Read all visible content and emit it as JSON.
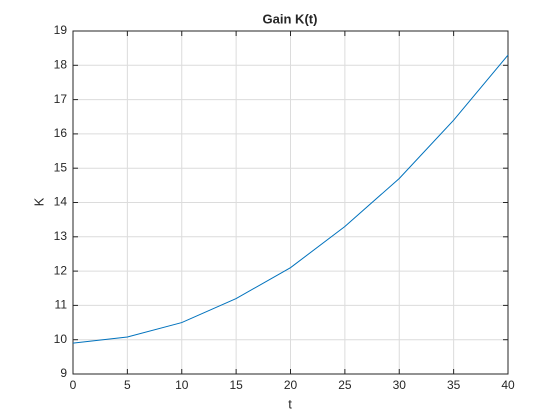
{
  "chart_data": {
    "type": "line",
    "title": "Gain K(t)",
    "x_label": "t",
    "y_label": "K",
    "x": [
      0,
      5,
      10,
      15,
      20,
      25,
      30,
      35,
      40
    ],
    "series": [
      {
        "name": "K",
        "color": "#0072bd",
        "values": [
          9.9,
          10.08,
          10.5,
          11.2,
          12.1,
          13.3,
          14.7,
          16.4,
          18.3
        ]
      }
    ],
    "xlim": [
      0,
      40
    ],
    "xticks": [
      0,
      5,
      10,
      15,
      20,
      25,
      30,
      35,
      40
    ],
    "ylim": [
      9,
      19
    ],
    "yticks": [
      9,
      10,
      11,
      12,
      13,
      14,
      15,
      16,
      17,
      18,
      19
    ],
    "grid": true
  }
}
